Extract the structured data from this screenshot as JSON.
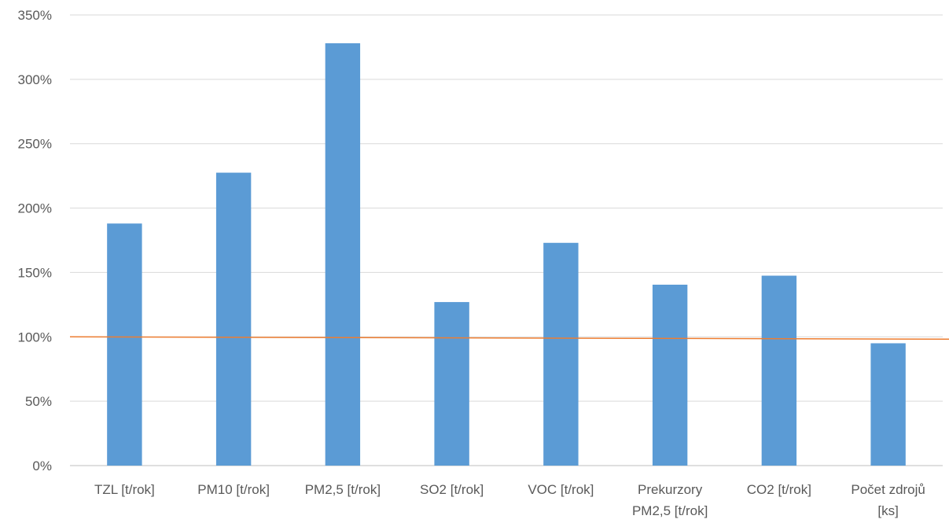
{
  "chart_data": {
    "type": "bar",
    "categories": [
      [
        "TZL [t/rok]"
      ],
      [
        "PM10 [t/rok]"
      ],
      [
        "PM2,5 [t/rok]"
      ],
      [
        "SO2 [t/rok]"
      ],
      [
        "VOC [t/rok]"
      ],
      [
        "Prekurzory",
        "PM2,5 [t/rok]"
      ],
      [
        "CO2 [t/rok]"
      ],
      [
        "Počet zdrojů",
        "[ks]"
      ]
    ],
    "values": [
      188,
      227.5,
      328,
      127,
      173,
      140.5,
      147.5,
      95
    ],
    "reference_line": {
      "value": 100,
      "color": "#ED7D31"
    },
    "yticks": [
      "0%",
      "50%",
      "100%",
      "150%",
      "200%",
      "250%",
      "300%",
      "350%"
    ],
    "ylim": [
      0,
      350
    ],
    "grid": true,
    "colors": {
      "bar": "#5B9BD5",
      "grid": "#D9D9D9",
      "axis": "#BFBFBF"
    }
  }
}
